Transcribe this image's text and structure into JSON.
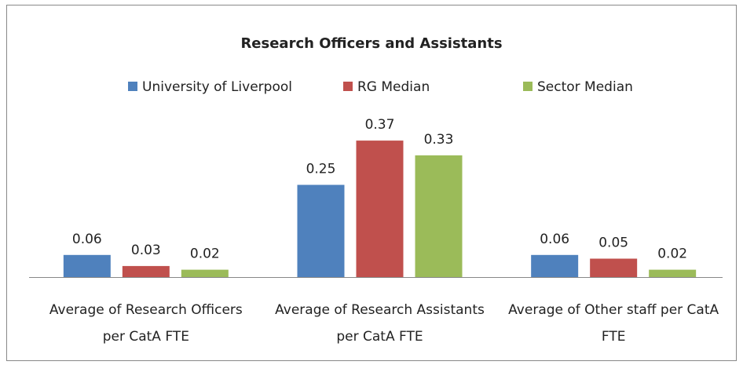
{
  "chart_data": {
    "type": "bar",
    "title": "Research Officers and Assistants",
    "categories": [
      "Average of Research Officers per CatA FTE",
      "Average of Research Assistants per CatA FTE",
      "Average of Other staff per CatA FTE"
    ],
    "series": [
      {
        "name": "University of Liverpool",
        "color": "#4f81bd",
        "values": [
          0.06,
          0.25,
          0.06
        ]
      },
      {
        "name": "RG Median",
        "color": "#c0504d",
        "values": [
          0.03,
          0.37,
          0.05
        ]
      },
      {
        "name": "Sector Median",
        "color": "#9bbb59",
        "values": [
          0.02,
          0.33,
          0.02
        ]
      }
    ],
    "ylim": [
      0,
      0.4
    ],
    "legend": "top"
  }
}
